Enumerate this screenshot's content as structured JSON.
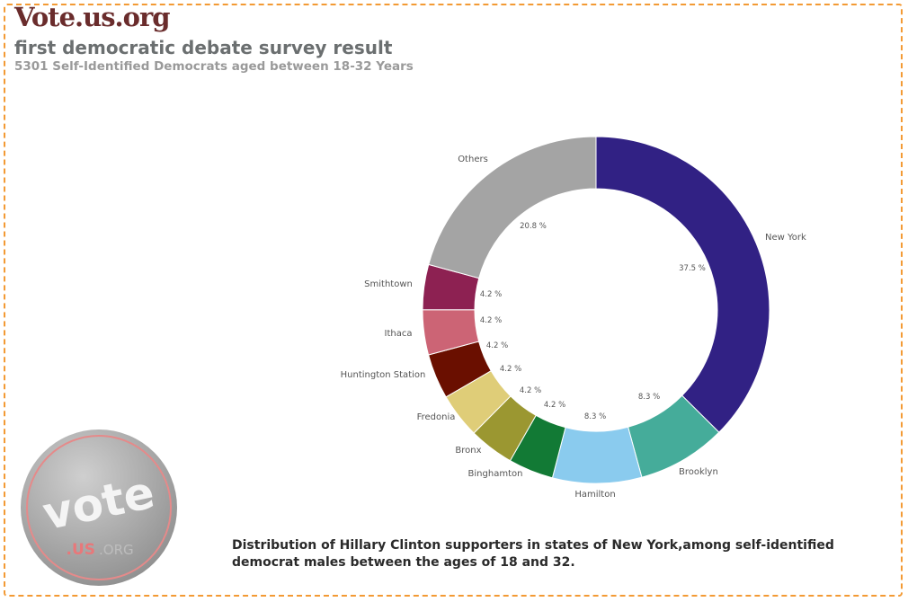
{
  "header": {
    "brand": "Vote.us.org",
    "title": "first democratic debate survey result",
    "subtitle": "5301 Self-Identified Democrats aged between 18-32 Years"
  },
  "logo": {
    "text_main": "vote",
    "text_sub1": ".US",
    "text_sub2": ".ORG"
  },
  "caption": "Distribution of Hillary Clinton supporters in states of New York,among self-identified democrat males between the ages of 18 and 32.",
  "chart_data": {
    "type": "pie",
    "donut": true,
    "start": "top",
    "direction": "clockwise",
    "categories": [
      "New York",
      "Brooklyn",
      "Hamilton",
      "Binghamton",
      "Bronx",
      "Fredonia",
      "Huntington Station",
      "Ithaca",
      "Smithtown",
      "Others"
    ],
    "values": [
      37.5,
      8.3,
      8.3,
      4.2,
      4.2,
      4.2,
      4.2,
      4.2,
      4.2,
      20.8
    ],
    "value_labels": [
      "37.5 %",
      "8.3 %",
      "8.3 %",
      "4.2 %",
      "4.2 %",
      "4.2 %",
      "4.2 %",
      "4.2 %",
      "4.2 %",
      "20.8 %"
    ],
    "colors": [
      "#312184",
      "#45ac9a",
      "#8acbee",
      "#127a35",
      "#9b9731",
      "#dfcd78",
      "#6a0f00",
      "#cc6475",
      "#8d2152",
      "#a4a4a4"
    ]
  }
}
